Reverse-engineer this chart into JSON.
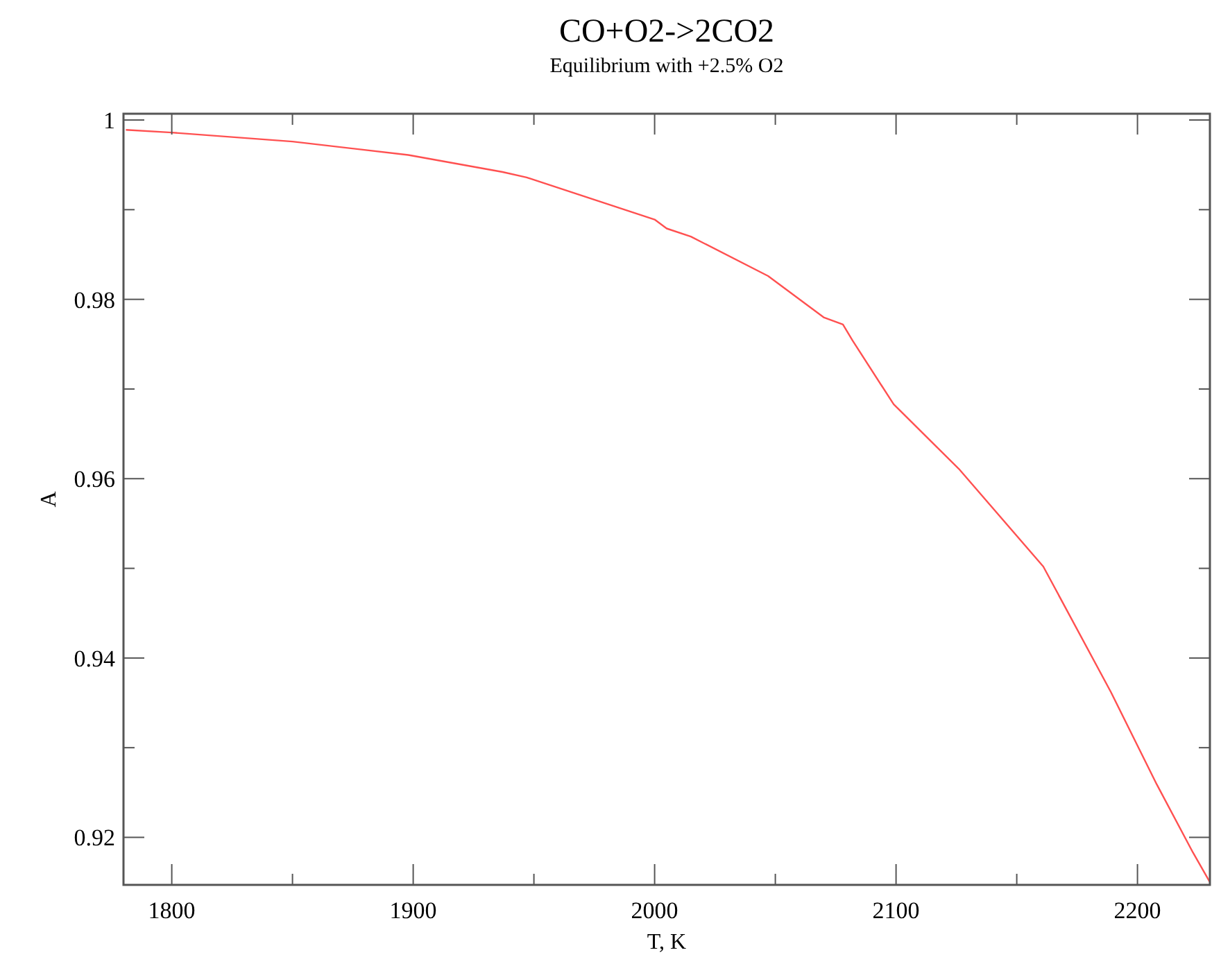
{
  "chart_data": {
    "type": "line",
    "title": "CO+O2->2CO2",
    "subtitle": "Equilibrium with +2.5% O2",
    "xlabel": "T, K",
    "ylabel": "A",
    "x": [
      1781,
      1800,
      1850,
      1898,
      1937,
      1947,
      2000,
      2005,
      2015,
      2047,
      2070,
      2078,
      2082,
      2099,
      2126,
      2161,
      2189,
      2208,
      2223,
      2230
    ],
    "series": [
      {
        "color": "#ff5050",
        "values": [
          0.9989,
          0.9986,
          0.9976,
          0.9961,
          0.9942,
          0.9936,
          0.9889,
          0.9879,
          0.987,
          0.9826,
          0.978,
          0.9772,
          0.9754,
          0.9683,
          0.9611,
          0.9502,
          0.9362,
          0.9259,
          0.9183,
          0.915
        ]
      }
    ],
    "xlim": [
      1780,
      2230
    ],
    "ylim": [
      0.9147,
      1.0007
    ],
    "xticks": [
      1800,
      {
        "value": 1850,
        "label": null
      },
      1900,
      {
        "value": 1950,
        "label": null
      },
      2000,
      {
        "value": 2050,
        "label": null
      },
      2100,
      {
        "value": 2150,
        "label": null
      },
      2200
    ],
    "yticks": [
      0.92,
      {
        "value": 0.93,
        "label": null
      },
      0.94,
      {
        "value": 0.95,
        "label": null
      },
      0.96,
      {
        "value": 0.97,
        "label": null
      },
      0.98,
      {
        "value": 0.99,
        "label": null
      },
      1
    ],
    "grid": false,
    "marker": "none",
    "line_style": "solid"
  }
}
